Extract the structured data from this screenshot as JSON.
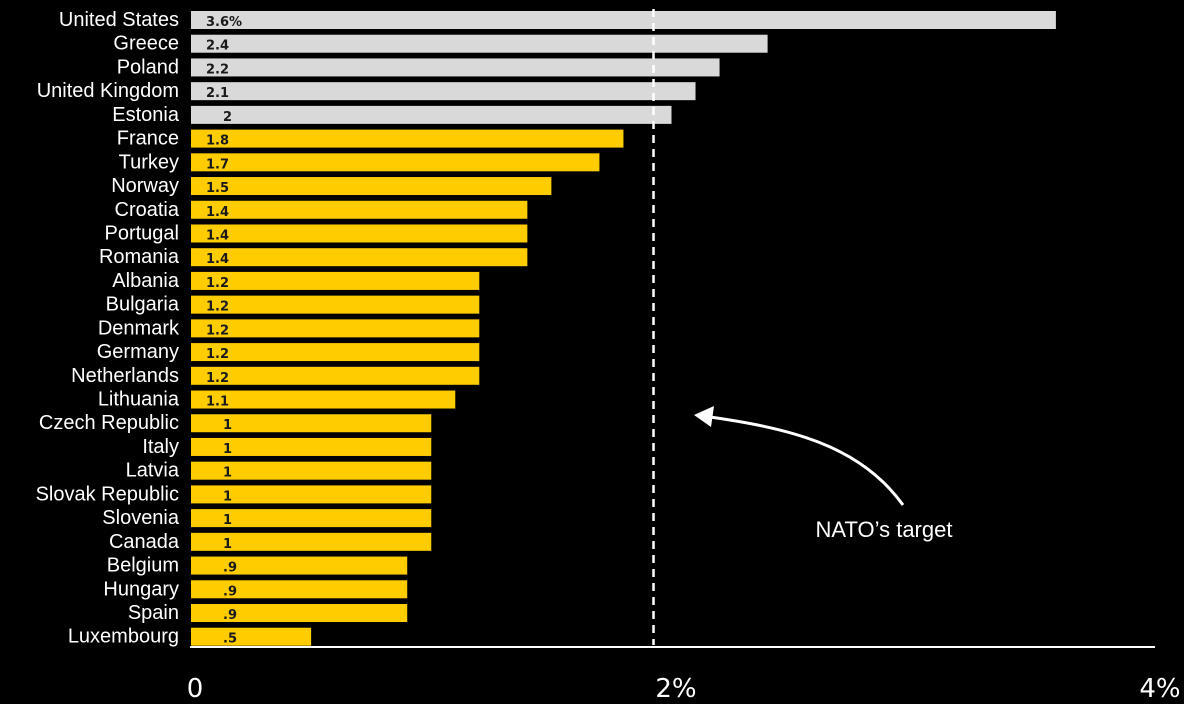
{
  "chart_data": {
    "type": "bar",
    "orientation": "horizontal",
    "categories": [
      "United States",
      "Greece",
      "Poland",
      "United Kingdom",
      "Estonia",
      "France",
      "Turkey",
      "Norway",
      "Croatia",
      "Portugal",
      "Romania",
      "Albania",
      "Bulgaria",
      "Denmark",
      "Germany",
      "Netherlands",
      "Lithuania",
      "Czech Republic",
      "Italy",
      "Latvia",
      "Slovak Republic",
      "Slovenia",
      "Canada",
      "Belgium",
      "Hungary",
      "Spain",
      "Luxembourg"
    ],
    "values": [
      3.6,
      2.4,
      2.2,
      2.1,
      2.0,
      1.8,
      1.7,
      1.5,
      1.4,
      1.4,
      1.4,
      1.2,
      1.2,
      1.2,
      1.2,
      1.2,
      1.1,
      1.0,
      1.0,
      1.0,
      1.0,
      1.0,
      1.0,
      0.9,
      0.9,
      0.9,
      0.5
    ],
    "value_labels": [
      "3.6%",
      "2.4",
      "2.2",
      "2.1",
      "2",
      "1.8",
      "1.7",
      "1.5",
      "1.4",
      "1.4",
      "1.4",
      "1.2",
      "1.2",
      "1.2",
      "1.2",
      "1.2",
      "1.1",
      "1",
      "1",
      "1",
      "1",
      "1",
      "1",
      ".9",
      ".9",
      ".9",
      ".5"
    ],
    "xlim": [
      0,
      4
    ],
    "x_ticks": [
      0,
      2,
      4
    ],
    "x_tick_labels": [
      "0",
      "2%",
      "4%"
    ],
    "reference_line": {
      "value": 2,
      "style": "dashed",
      "color": "#ffffff"
    },
    "annotation": {
      "text": "NATO’s target"
    },
    "colors": {
      "above_target": "#d9d9d9",
      "below_target": "#ffcc00",
      "background": "#000000"
    },
    "grid": false,
    "legend": "none"
  }
}
